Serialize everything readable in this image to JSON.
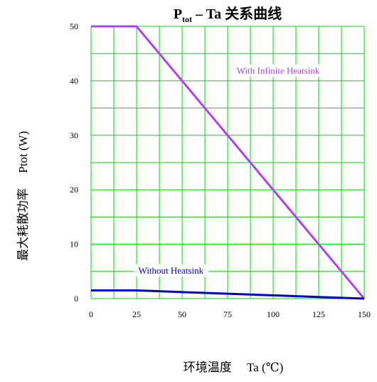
{
  "chart_data": {
    "type": "line",
    "title": {
      "main": "P",
      "subscript": "tot",
      "rest": " – Ta 关系曲线"
    },
    "xlabel": "环境温度　 Ta (℃)",
    "ylabel": "最大耗散功率　 Ptot (W)",
    "x_ticks": [
      0,
      25,
      50,
      75,
      100,
      125,
      150
    ],
    "y_ticks": [
      0,
      10,
      20,
      30,
      40,
      50
    ],
    "xlim": [
      0,
      150
    ],
    "ylim": [
      0,
      50
    ],
    "grid": true,
    "grid_color": "#00dd00",
    "series": [
      {
        "name": "With Infinite Heatsink",
        "color": "#b040f0",
        "x": [
          0,
          25,
          150
        ],
        "y": [
          50,
          50,
          0
        ],
        "label_pos": [
          80,
          41.3
        ]
      },
      {
        "name": "Without Heatsink",
        "color": "#0000cc",
        "x": [
          0,
          25,
          50,
          75,
          100,
          125,
          150
        ],
        "y": [
          1.5,
          1.5,
          1.2,
          0.9,
          0.6,
          0.3,
          0
        ],
        "label_pos": [
          26,
          4.6
        ]
      }
    ]
  }
}
